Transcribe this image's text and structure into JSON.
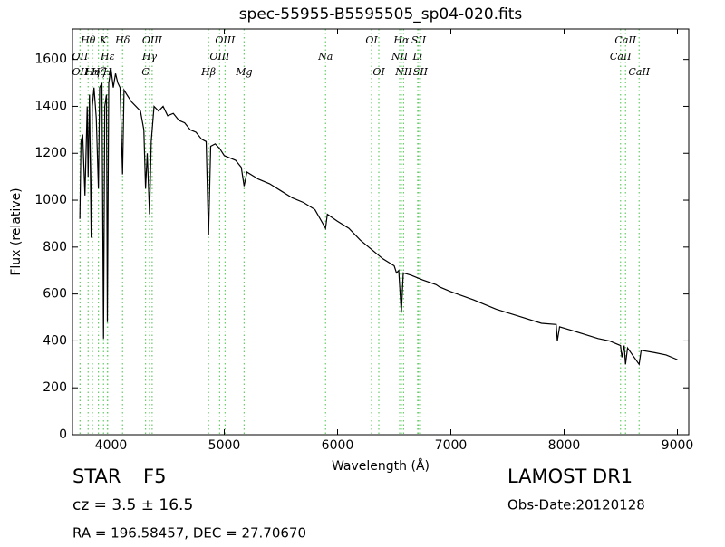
{
  "chart_data": {
    "type": "line",
    "title": "spec-55955-B5595505_sp04-020.fits",
    "x_label": "Wavelength (Å)",
    "y_label": "Flux (relative)",
    "xlim": [
      3660,
      9100
    ],
    "ylim": [
      0,
      1730
    ],
    "xticks": [
      4000,
      5000,
      6000,
      7000,
      8000,
      9000
    ],
    "yticks": [
      0,
      200,
      400,
      600,
      800,
      1000,
      1200,
      1400,
      1600
    ],
    "grid": false,
    "series": [
      {
        "color": "#000000",
        "x": [
          3725,
          3735,
          3750,
          3770,
          3790,
          3798,
          3810,
          3825,
          3835,
          3850,
          3870,
          3889,
          3900,
          3920,
          3934,
          3945,
          3960,
          3968,
          3980,
          4000,
          4020,
          4040,
          4060,
          4080,
          4102,
          4115,
          4140,
          4180,
          4220,
          4260,
          4290,
          4305,
          4320,
          4340,
          4355,
          4380,
          4420,
          4460,
          4500,
          4550,
          4600,
          4650,
          4700,
          4750,
          4800,
          4840,
          4861,
          4880,
          4920,
          4960,
          5000,
          5050,
          5100,
          5150,
          5175,
          5200,
          5300,
          5400,
          5500,
          5600,
          5700,
          5800,
          5894,
          5910,
          6000,
          6100,
          6200,
          6300,
          6400,
          6500,
          6520,
          6540,
          6563,
          6580,
          6650,
          6750,
          6870,
          6900,
          7000,
          7200,
          7400,
          7600,
          7800,
          7930,
          7940,
          7960,
          8100,
          8200,
          8300,
          8400,
          8498,
          8510,
          8530,
          8542,
          8560,
          8662,
          8680,
          8800,
          8900,
          9000
        ],
        "values": [
          920,
          1250,
          1280,
          1020,
          1400,
          1100,
          1450,
          840,
          1400,
          1480,
          1350,
          1050,
          1480,
          1500,
          410,
          1400,
          1450,
          480,
          1500,
          1560,
          1480,
          1540,
          1500,
          1480,
          1110,
          1470,
          1450,
          1420,
          1400,
          1380,
          1300,
          1050,
          1200,
          940,
          1250,
          1400,
          1380,
          1400,
          1360,
          1370,
          1340,
          1330,
          1300,
          1290,
          1260,
          1250,
          850,
          1230,
          1240,
          1220,
          1190,
          1180,
          1170,
          1140,
          1060,
          1120,
          1090,
          1070,
          1040,
          1010,
          990,
          960,
          880,
          940,
          910,
          880,
          830,
          790,
          750,
          720,
          690,
          700,
          520,
          690,
          680,
          660,
          640,
          630,
          610,
          575,
          535,
          505,
          475,
          470,
          400,
          460,
          440,
          425,
          410,
          400,
          380,
          330,
          380,
          300,
          370,
          300,
          360,
          350,
          340,
          320
        ]
      }
    ],
    "line_color": "#66cc66",
    "lines": [
      {
        "wavelength": 3727,
        "label": "OII"
      },
      {
        "wavelength": 3727,
        "label": "OII"
      },
      {
        "wavelength": 3798,
        "label": "Hθ"
      },
      {
        "wavelength": 3836,
        "label": "Hη"
      },
      {
        "wavelength": 3889,
        "label": "Hζ"
      },
      {
        "wavelength": 3934,
        "label": "K"
      },
      {
        "wavelength": 3968,
        "label": "H"
      },
      {
        "wavelength": 3970,
        "label": "Hε"
      },
      {
        "wavelength": 4102,
        "label": "Hδ"
      },
      {
        "wavelength": 4305,
        "label": "G"
      },
      {
        "wavelength": 4340,
        "label": "Hγ"
      },
      {
        "wavelength": 4363,
        "label": "OIII"
      },
      {
        "wavelength": 4861,
        "label": "Hβ"
      },
      {
        "wavelength": 4959,
        "label": "OIII"
      },
      {
        "wavelength": 5007,
        "label": "OIII"
      },
      {
        "wavelength": 5175,
        "label": "Mg"
      },
      {
        "wavelength": 5894,
        "label": "Na"
      },
      {
        "wavelength": 6300,
        "label": "OI"
      },
      {
        "wavelength": 6364,
        "label": "OI"
      },
      {
        "wavelength": 6548,
        "label": "NII"
      },
      {
        "wavelength": 6563,
        "label": "Hα"
      },
      {
        "wavelength": 6583,
        "label": "NII"
      },
      {
        "wavelength": 6707,
        "label": "Li"
      },
      {
        "wavelength": 6716,
        "label": "SII"
      },
      {
        "wavelength": 6731,
        "label": "SII"
      },
      {
        "wavelength": 8498,
        "label": "CaII"
      },
      {
        "wavelength": 8542,
        "label": "CaII"
      },
      {
        "wavelength": 8662,
        "label": "CaII"
      }
    ],
    "info": {
      "class": "STAR",
      "subclass": "F5",
      "cz": "cz = 3.5 ± 16.5",
      "coords": "RA = 196.58457, DEC = 27.70670",
      "survey": "LAMOST DR1",
      "date": "Obs-Date:20120128"
    }
  }
}
